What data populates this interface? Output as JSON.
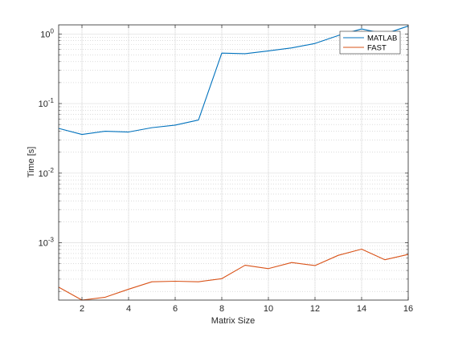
{
  "chart_data": {
    "type": "line",
    "xlabel": "Matrix Size",
    "ylabel": "Time [s]",
    "xlim": [
      1,
      16
    ],
    "ylim": [
      0.00015,
      1.35
    ],
    "yscale": "log",
    "grid": true,
    "legend_position": "top-right",
    "x_tick_labels": [
      "2",
      "4",
      "6",
      "8",
      "10",
      "12",
      "14",
      "16"
    ],
    "y_tick_labels": [
      {
        "base": "10",
        "exp": "0"
      },
      {
        "base": "10",
        "exp": "-1"
      },
      {
        "base": "10",
        "exp": "-2"
      },
      {
        "base": "10",
        "exp": "-3"
      }
    ],
    "x": [
      1,
      2,
      3,
      4,
      5,
      6,
      7,
      8,
      9,
      10,
      11,
      12,
      13,
      14,
      15,
      16
    ],
    "series": [
      {
        "name": "MATLAB",
        "color": "#0072BD",
        "values": [
          0.044,
          0.036,
          0.04,
          0.039,
          0.045,
          0.049,
          0.058,
          0.53,
          0.52,
          0.57,
          0.63,
          0.73,
          0.95,
          1.18,
          1.0,
          1.3
        ]
      },
      {
        "name": "FAST",
        "color": "#D95319",
        "values": [
          0.00023,
          0.00015,
          0.000165,
          0.000215,
          0.000275,
          0.00028,
          0.000275,
          0.000305,
          0.000475,
          0.000425,
          0.00052,
          0.00047,
          0.00066,
          0.00081,
          0.00057,
          0.00068
        ]
      }
    ]
  }
}
